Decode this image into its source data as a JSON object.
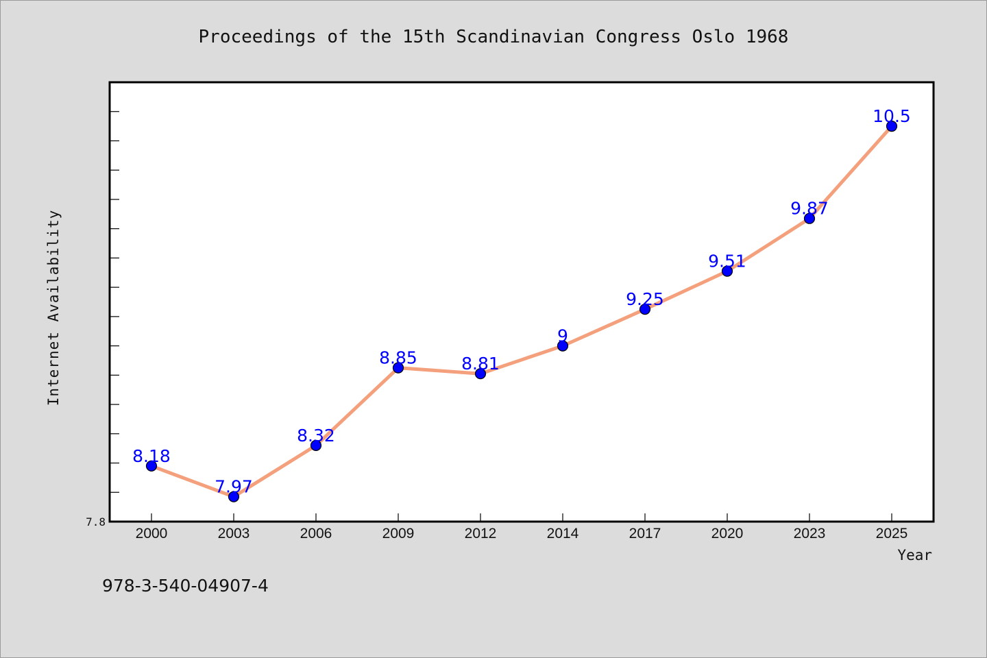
{
  "colors": {
    "background": "#dcdcdc",
    "plot_background": "#ffffff",
    "line": "#f4a07c",
    "marker": "#0000ff",
    "data_label": "#0000ff"
  },
  "footnote": "978-3-540-04907-4",
  "chart_data": {
    "type": "line",
    "title": "Proceedings of the 15th Scandinavian Congress Oslo 1968",
    "xlabel": "Year",
    "ylabel": "Internet Availability",
    "categories": [
      "2000",
      "2003",
      "2006",
      "2009",
      "2012",
      "2014",
      "2017",
      "2020",
      "2023",
      "2025"
    ],
    "series": [
      {
        "values": [
          8.18,
          7.97,
          8.32,
          8.85,
          8.81,
          9.0,
          9.25,
          9.51,
          9.87,
          10.5
        ],
        "labels": [
          "8.18",
          "7.97",
          "8.32",
          "8.85",
          "8.81",
          "9",
          "9.25",
          "9.51",
          "9.87",
          "10.5"
        ]
      }
    ],
    "ylim": [
      7.8,
      10.8
    ],
    "yticks_labeled": [
      "7.8"
    ],
    "grid": false,
    "legend": "none"
  }
}
